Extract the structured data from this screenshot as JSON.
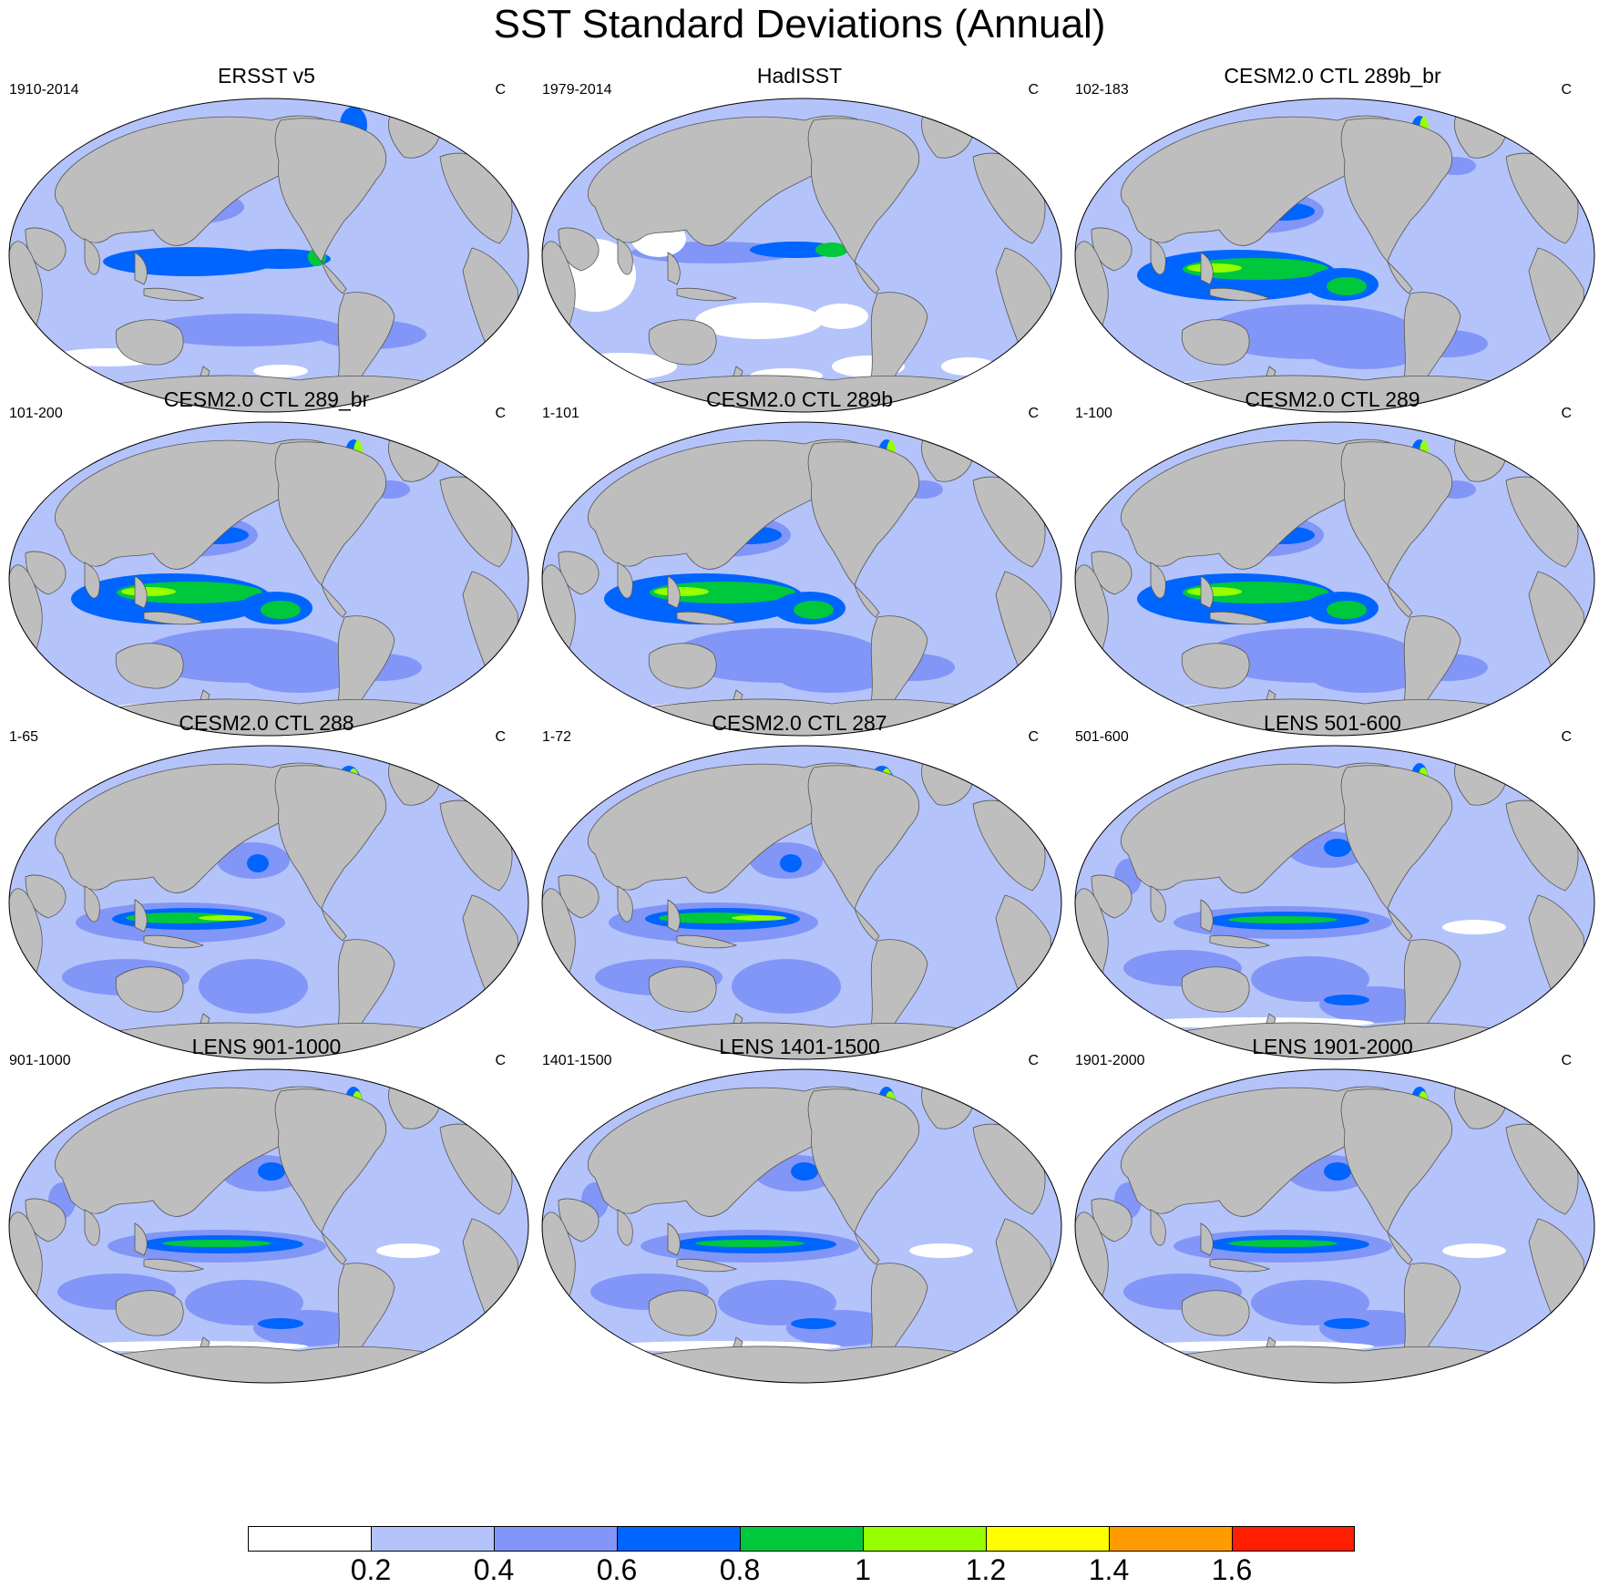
{
  "title": "SST Standard Deviations (Annual)",
  "unit": "C",
  "panels": [
    {
      "title": "ERSST v5",
      "period": "1910-2014",
      "variant": "obs"
    },
    {
      "title": "HadISST",
      "period": "1979-2014",
      "variant": "obs2"
    },
    {
      "title": "CESM2.0 CTL 289b_br",
      "period": "102-183",
      "variant": "strong"
    },
    {
      "title": "CESM2.0 CTL 289_br",
      "period": "101-200",
      "variant": "strong"
    },
    {
      "title": "CESM2.0 CTL 289b",
      "period": "1-101",
      "variant": "strong"
    },
    {
      "title": "CESM2.0 CTL 289",
      "period": "1-100",
      "variant": "strong"
    },
    {
      "title": "CESM2.0 CTL 288",
      "period": "1-65",
      "variant": "mid"
    },
    {
      "title": "CESM2.0 CTL 287",
      "period": "1-72",
      "variant": "mid"
    },
    {
      "title": "LENS 501-600",
      "period": "501-600",
      "variant": "lens"
    },
    {
      "title": "LENS 901-1000",
      "period": "901-1000",
      "variant": "lens"
    },
    {
      "title": "LENS 1401-1500",
      "period": "1401-1500",
      "variant": "lens"
    },
    {
      "title": "LENS 1901-2000",
      "period": "1901-2000",
      "variant": "lens"
    }
  ],
  "colorbar": {
    "colors": [
      "#ffffff",
      "#b4c3fa",
      "#8296f7",
      "#0064ff",
      "#00c83c",
      "#96ff00",
      "#ffff00",
      "#ff9b00",
      "#ff1e00"
    ],
    "labels": [
      "0.2",
      "0.4",
      "0.6",
      "0.8",
      "1",
      "1.2",
      "1.4",
      "1.6"
    ]
  },
  "colors": {
    "land": "#bebebe",
    "ocean_base": "#b4c3fa",
    "coastline": "#555555"
  }
}
